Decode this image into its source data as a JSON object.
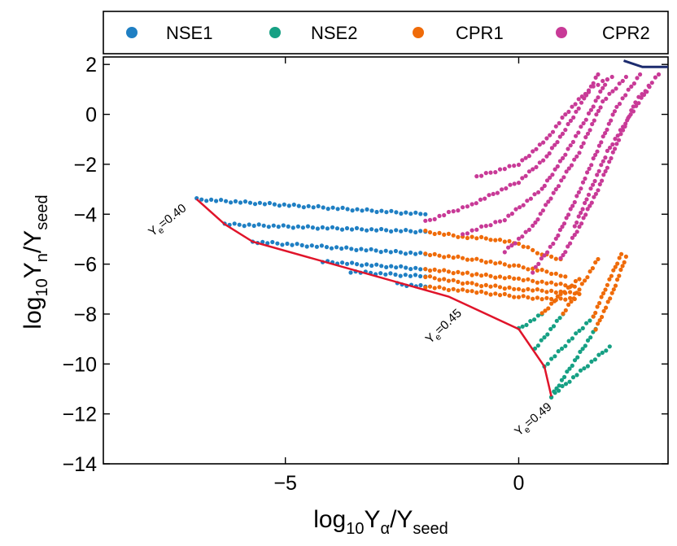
{
  "chart_data": {
    "type": "scatter",
    "xlabel": "log10Yα/Yseed",
    "ylabel": "log10Yn/Yseed",
    "xlim": [
      -8.9,
      3.2
    ],
    "ylim": [
      -14,
      2.3
    ],
    "xticks": [
      -5,
      0
    ],
    "xtick_labels": [
      "−5",
      "0"
    ],
    "yticks": [
      2,
      0,
      -2,
      -4,
      -6,
      -8,
      -10,
      -12,
      -14
    ],
    "ytick_labels": [
      "2",
      "0",
      "−2",
      "−4",
      "−6",
      "−8",
      "−10",
      "−12",
      "−14"
    ],
    "grid": false,
    "legend_position": "top, outside, single row",
    "legend": [
      {
        "name": "NSE1",
        "color": "#1f7fc3"
      },
      {
        "name": "NSE2",
        "color": "#16a084"
      },
      {
        "name": "CPR1",
        "color": "#ef6b09"
      },
      {
        "name": "CPR2",
        "color": "#c83a97"
      }
    ],
    "series": [
      {
        "name": "NSE1",
        "color": "#1f7fc3",
        "tracks": [
          {
            "x": [
              -6.9,
              -2.0
            ],
            "y": [
              -3.4,
              -4.0
            ]
          },
          {
            "x": [
              -6.3,
              -2.0
            ],
            "y": [
              -4.4,
              -4.7
            ]
          },
          {
            "x": [
              -5.7,
              -2.0
            ],
            "y": [
              -5.1,
              -5.6
            ]
          },
          {
            "x": [
              -4.2,
              -2.0
            ],
            "y": [
              -5.9,
              -6.2
            ]
          },
          {
            "x": [
              -3.6,
              -2.0
            ],
            "y": [
              -6.3,
              -6.5
            ]
          },
          {
            "x": [
              -2.6,
              -2.0
            ],
            "y": [
              -6.8,
              -6.9
            ]
          }
        ]
      },
      {
        "name": "NSE2",
        "color": "#16a084",
        "tracks": [
          {
            "x": [
              0.0,
              0.5
            ],
            "y": [
              -8.6,
              -8.0
            ]
          },
          {
            "x": [
              0.35,
              0.95
            ],
            "y": [
              -9.4,
              -8.0
            ]
          },
          {
            "x": [
              0.55,
              1.6
            ],
            "y": [
              -10.1,
              -8.1
            ]
          },
          {
            "x": [
              0.7,
              1.65
            ],
            "y": [
              -11.3,
              -8.6
            ]
          },
          {
            "x": [
              0.7,
              1.95
            ],
            "y": [
              -11.3,
              -9.3
            ]
          }
        ]
      },
      {
        "name": "CPR1",
        "color": "#ef6b09",
        "tracks": [
          {
            "x": [
              -2.0,
              -1.2,
              -0.5,
              0.0,
              0.5,
              0.9
            ],
            "y": [
              -4.7,
              -4.9,
              -5.0,
              -5.2,
              -5.6,
              -5.8
            ]
          },
          {
            "x": [
              -2.0,
              -1.0,
              0.0,
              0.6,
              1.0
            ],
            "y": [
              -5.6,
              -5.8,
              -6.1,
              -6.3,
              -6.5
            ]
          },
          {
            "x": [
              -2.0,
              -1.0,
              0.0,
              0.8,
              1.2
            ],
            "y": [
              -6.2,
              -6.4,
              -6.6,
              -6.8,
              -6.9
            ]
          },
          {
            "x": [
              -2.0,
              -1.0,
              0.0,
              0.8,
              1.3
            ],
            "y": [
              -6.5,
              -6.8,
              -7.0,
              -7.1,
              -7.2
            ]
          },
          {
            "x": [
              -2.0,
              -1.0,
              0.0,
              0.6,
              1.2
            ],
            "y": [
              -6.9,
              -7.1,
              -7.3,
              -7.4,
              -7.4
            ]
          },
          {
            "x": [
              0.5,
              0.9,
              1.3
            ],
            "y": [
              -8.0,
              -7.2,
              -6.6
            ]
          },
          {
            "x": [
              0.95,
              1.3,
              1.7
            ],
            "y": [
              -8.0,
              -7.0,
              -5.8
            ]
          },
          {
            "x": [
              1.6,
              1.9,
              2.2
            ],
            "y": [
              -8.1,
              -6.8,
              -5.6
            ]
          },
          {
            "x": [
              1.65,
              2.0,
              2.3
            ],
            "y": [
              -8.6,
              -7.2,
              -5.7
            ]
          }
        ]
      },
      {
        "name": "CPR2",
        "color": "#c83a97",
        "tracks": [
          {
            "x": [
              -2.0,
              -1.0,
              0.0,
              0.6,
              1.0,
              1.4,
              1.7
            ],
            "y": [
              -4.3,
              -3.6,
              -2.7,
              -1.7,
              -0.6,
              0.6,
              1.6
            ]
          },
          {
            "x": [
              -0.9,
              0.0,
              0.6,
              1.0,
              1.5,
              2.0
            ],
            "y": [
              -2.5,
              -2.0,
              -1.0,
              0.0,
              1.0,
              1.5
            ]
          },
          {
            "x": [
              -1.2,
              -0.3,
              0.5,
              1.0,
              1.5,
              1.9
            ],
            "y": [
              -4.8,
              -4.2,
              -3.0,
              -1.6,
              0.0,
              1.4
            ]
          },
          {
            "x": [
              -0.3,
              0.3,
              0.8,
              1.3,
              1.8,
              2.3
            ],
            "y": [
              -5.5,
              -4.5,
              -3.0,
              -1.5,
              0.5,
              1.5
            ]
          },
          {
            "x": [
              0.3,
              0.8,
              1.2,
              1.6,
              2.1,
              2.6
            ],
            "y": [
              -6.3,
              -5.0,
              -3.5,
              -1.8,
              0.3,
              1.6
            ]
          },
          {
            "x": [
              0.9,
              1.3,
              1.7,
              2.1,
              2.5,
              3.0
            ],
            "y": [
              -5.8,
              -4.5,
              -3.0,
              -1.2,
              0.5,
              1.6
            ]
          },
          {
            "x": [
              1.2,
              1.5,
              1.9,
              2.4,
              2.8
            ],
            "y": [
              -4.5,
              -3.2,
              -1.5,
              0.0,
              1.1
            ]
          }
        ]
      }
    ],
    "boundary_line": {
      "color": "#e0142a",
      "x": [
        -6.9,
        -6.3,
        -5.7,
        -1.5,
        0.0,
        0.55,
        0.7
      ],
      "y": [
        -3.4,
        -4.4,
        -5.1,
        -7.3,
        -8.6,
        -10.1,
        -11.3
      ]
    },
    "top_line": {
      "color": "#1c2b6e",
      "x": [
        2.25,
        2.65,
        3.2
      ],
      "y": [
        2.15,
        1.9,
        1.9
      ]
    },
    "annotations": [
      {
        "text_main": "Y",
        "text_sub": "e",
        "text_value": "=0.40",
        "x": -7.85,
        "y": -4.9,
        "rotation": -38
      },
      {
        "text_main": "Y",
        "text_sub": "e",
        "text_value": "=0.45",
        "x": -1.9,
        "y": -9.2,
        "rotation": -43
      },
      {
        "text_main": "Y",
        "text_sub": "e",
        "text_value": "=0.49",
        "x": 0.0,
        "y": -12.9,
        "rotation": -40
      }
    ]
  }
}
